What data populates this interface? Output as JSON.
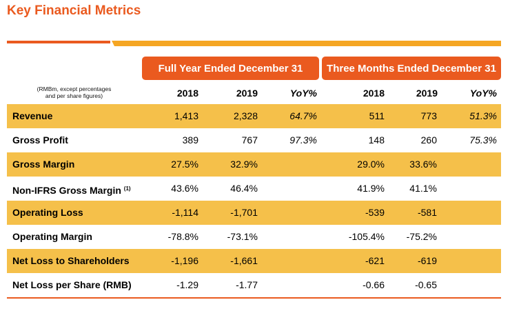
{
  "title": "Key Financial Metrics",
  "group_headers": {
    "full_year": "Full Year Ended December 31",
    "three_months": "Three Months Ended December 31"
  },
  "note_line1": "(RMBm, except percentages",
  "note_line2": "and per share figures)",
  "columns": [
    "2018",
    "2019",
    "YoY%",
    "2018",
    "2019",
    "YoY%"
  ],
  "rows": [
    {
      "label": "Revenue",
      "sup": "",
      "values": [
        "1,413",
        "2,328",
        "64.7%",
        "511",
        "773",
        "51.3%"
      ]
    },
    {
      "label": "Gross Profit",
      "sup": "",
      "values": [
        "389",
        "767",
        "97.3%",
        "148",
        "260",
        "75.3%"
      ]
    },
    {
      "label": "Gross Margin",
      "sup": "",
      "values": [
        "27.5%",
        "32.9%",
        "",
        "29.0%",
        "33.6%",
        ""
      ]
    },
    {
      "label": "Non-IFRS Gross Margin",
      "sup": "(1)",
      "values": [
        "43.6%",
        "46.4%",
        "",
        "41.9%",
        "41.1%",
        ""
      ]
    },
    {
      "label": "Operating Loss",
      "sup": "",
      "values": [
        "-1,114",
        "-1,701",
        "",
        "-539",
        "-581",
        ""
      ]
    },
    {
      "label": "Operating Margin",
      "sup": "",
      "values": [
        "-78.8%",
        "-73.1%",
        "",
        "-105.4%",
        "-75.2%",
        ""
      ]
    },
    {
      "label": "Net Loss to Shareholders",
      "sup": "",
      "values": [
        "-1,196",
        "-1,661",
        "",
        "-621",
        "-619",
        ""
      ]
    },
    {
      "label": "Net Loss per Share (RMB)",
      "sup": "",
      "values": [
        "-1.29",
        "-1.77",
        "",
        "-0.66",
        "-0.65",
        ""
      ]
    }
  ],
  "colors": {
    "accent": "#ea5a1f",
    "secondary": "#f5a623",
    "row_shade": "#f5c04a"
  }
}
